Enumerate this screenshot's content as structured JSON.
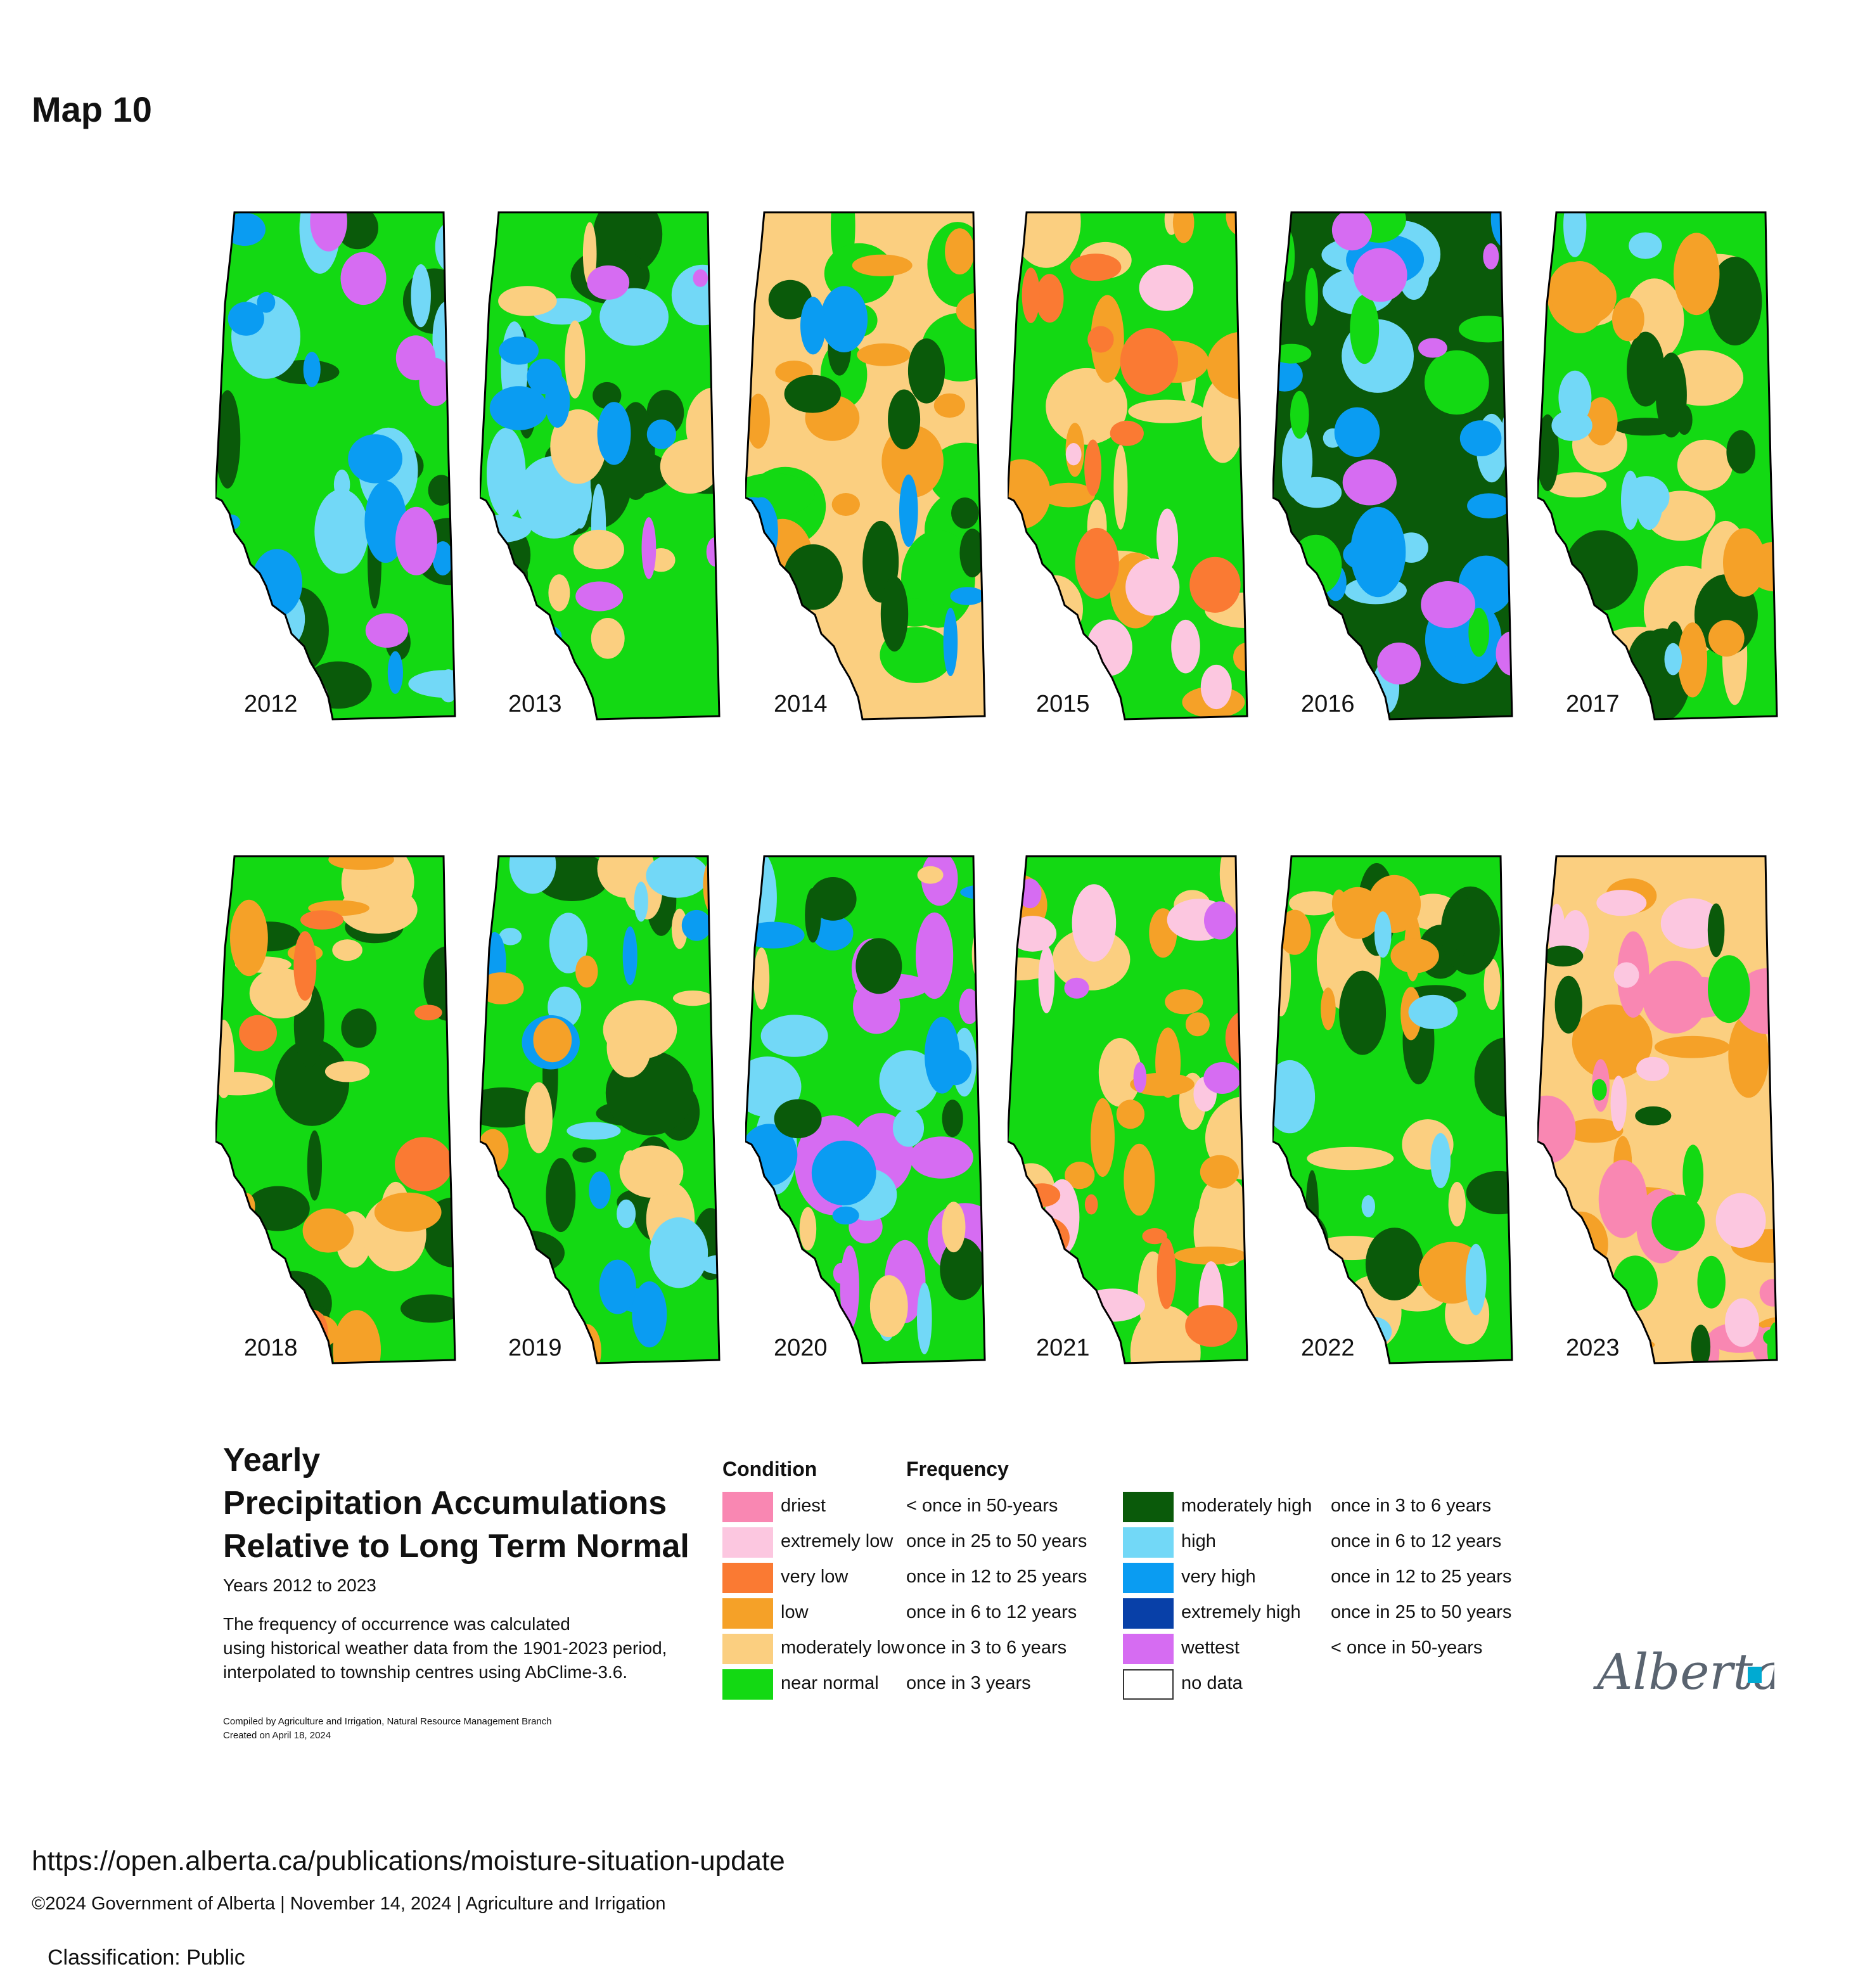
{
  "map_label": "Map 10",
  "colors": {
    "driest": "#f987b2",
    "extremely_low": "#fcc7e0",
    "very_low": "#fa7a33",
    "low": "#f5a128",
    "moderately_low": "#fbcf80",
    "near_normal": "#13d913",
    "moderately_high": "#0a5a0a",
    "high": "#72d8f7",
    "very_high": "#0a9cf2",
    "extremely_high": "#0840a8",
    "wettest": "#d66cf2",
    "no_data": "#ffffff"
  },
  "maps": [
    {
      "year": "2012",
      "base": "near_normal",
      "patches": [
        "moderately_high",
        "high",
        "very_high",
        "wettest"
      ]
    },
    {
      "year": "2013",
      "base": "near_normal",
      "patches": [
        "moderately_high",
        "high",
        "moderately_low",
        "very_high",
        "wettest"
      ]
    },
    {
      "year": "2014",
      "base": "moderately_low",
      "patches": [
        "near_normal",
        "low",
        "moderately_high",
        "very_high"
      ]
    },
    {
      "year": "2015",
      "base": "near_normal",
      "patches": [
        "moderately_low",
        "low",
        "very_low",
        "extremely_low"
      ]
    },
    {
      "year": "2016",
      "base": "moderately_high",
      "patches": [
        "high",
        "very_high",
        "near_normal",
        "wettest"
      ]
    },
    {
      "year": "2017",
      "base": "near_normal",
      "patches": [
        "moderately_low",
        "moderately_high",
        "low",
        "high"
      ]
    },
    {
      "year": "2018",
      "base": "near_normal",
      "patches": [
        "moderately_high",
        "moderately_low",
        "low",
        "very_low"
      ]
    },
    {
      "year": "2019",
      "base": "near_normal",
      "patches": [
        "moderately_high",
        "moderately_low",
        "high",
        "very_high",
        "low"
      ]
    },
    {
      "year": "2020",
      "base": "near_normal",
      "patches": [
        "wettest",
        "high",
        "very_high",
        "moderately_high",
        "moderately_low"
      ]
    },
    {
      "year": "2021",
      "base": "near_normal",
      "patches": [
        "moderately_low",
        "low",
        "extremely_low",
        "very_low",
        "wettest"
      ]
    },
    {
      "year": "2022",
      "base": "near_normal",
      "patches": [
        "moderately_low",
        "moderately_high",
        "low",
        "high"
      ]
    },
    {
      "year": "2023",
      "base": "moderately_low",
      "patches": [
        "low",
        "driest",
        "extremely_low",
        "near_normal",
        "moderately_high"
      ]
    }
  ],
  "legend": {
    "title_lines": [
      "Yearly",
      "Precipitation Accumulations",
      "Relative to Long Term Normal"
    ],
    "years": "Years 2012 to 2023",
    "description_lines": [
      "The frequency of occurrence was calculated",
      "using historical weather data from the 1901-2023 period,",
      "interpolated to township centres using AbClime-3.6."
    ],
    "credit_lines": [
      "Compiled by Agriculture and Irrigation, Natural Resource Management Branch",
      "Created on April 18, 2024"
    ],
    "condition_header": "Condition",
    "frequency_header": "Frequency",
    "left_entries": [
      {
        "key": "driest",
        "condition": "driest",
        "frequency": "< once in 50-years"
      },
      {
        "key": "extremely_low",
        "condition": "extremely low",
        "frequency": "once in 25 to 50 years"
      },
      {
        "key": "very_low",
        "condition": "very low",
        "frequency": "once in 12 to 25 years"
      },
      {
        "key": "low",
        "condition": "low",
        "frequency": "once in 6 to 12 years"
      },
      {
        "key": "moderately_low",
        "condition": "moderately low",
        "frequency": "once in 3 to 6 years"
      },
      {
        "key": "near_normal",
        "condition": "near normal",
        "frequency": "once in 3 years"
      }
    ],
    "right_entries": [
      {
        "key": "moderately_high",
        "condition": "moderately high",
        "frequency": "once in 3 to 6 years"
      },
      {
        "key": "high",
        "condition": "high",
        "frequency": "once in 6 to 12 years"
      },
      {
        "key": "very_high",
        "condition": "very high",
        "frequency": "once in 12 to 25 years"
      },
      {
        "key": "extremely_high",
        "condition": "extremely high",
        "frequency": "once in 25 to 50 years"
      },
      {
        "key": "wettest",
        "condition": "wettest",
        "frequency": "< once in 50-years"
      },
      {
        "key": "no_data",
        "condition": "no data",
        "frequency": ""
      }
    ]
  },
  "logo_text": "Alberta",
  "source_url": "https://open.alberta.ca/publications/moisture-situation-update",
  "copyright": "©2024 Government of Alberta | November 14, 2024 | Agriculture and Irrigation",
  "classification": "Classification: Public"
}
